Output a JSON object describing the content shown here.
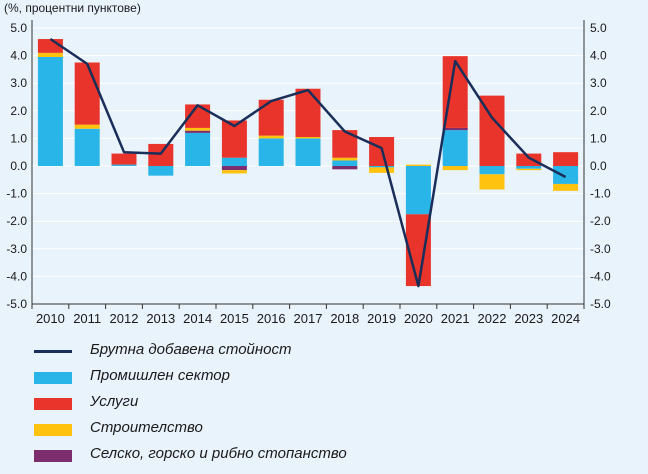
{
  "chart_data": {
    "type": "bar",
    "stacked": true,
    "unit_label": "(%, процентни пунктове)",
    "categories": [
      "2010",
      "2011",
      "2012",
      "2013",
      "2014",
      "2015",
      "2016",
      "2017",
      "2018",
      "2019",
      "2020",
      "2021",
      "2022",
      "2023",
      "2024"
    ],
    "ylim": [
      -5.0,
      5.0
    ],
    "yticks": [
      "5.0",
      "4.0",
      "3.0",
      "2.0",
      "1.0",
      "0.0",
      "-1.0",
      "-2.0",
      "-3.0",
      "-4.0",
      "-5.0"
    ],
    "series": [
      {
        "name": "Промишлен сектор",
        "color": "#29b5e8",
        "values": [
          3.95,
          1.35,
          0.05,
          -0.35,
          1.2,
          0.3,
          1.0,
          1.0,
          0.2,
          -0.05,
          -1.75,
          1.3,
          -0.3,
          -0.1,
          -0.65
        ]
      },
      {
        "name": "Селско, горско и рибно стопанство",
        "color": "#7b2d6e",
        "values": [
          0.0,
          0.0,
          0.0,
          0.0,
          0.08,
          -0.15,
          0.0,
          0.0,
          -0.12,
          0.0,
          0.0,
          0.08,
          0.0,
          0.0,
          0.0
        ]
      },
      {
        "name": "Строителство",
        "color": "#ffc20e",
        "values": [
          0.15,
          0.15,
          0.0,
          0.0,
          0.1,
          -0.12,
          0.1,
          0.05,
          0.1,
          -0.2,
          0.05,
          -0.15,
          -0.55,
          -0.05,
          -0.25
        ]
      },
      {
        "name": "Услуги",
        "color": "#e8342a",
        "values": [
          0.5,
          2.25,
          0.4,
          0.8,
          0.85,
          1.35,
          1.3,
          1.75,
          1.0,
          1.05,
          -2.6,
          2.6,
          2.55,
          0.45,
          0.5
        ]
      }
    ],
    "line": {
      "name": "Брутна добавена стойност",
      "color": "#1a2e5a",
      "values": [
        4.6,
        3.7,
        0.5,
        0.45,
        2.2,
        1.45,
        2.35,
        2.75,
        1.25,
        0.65,
        -4.35,
        3.8,
        1.75,
        0.3,
        -0.4
      ]
    },
    "legend": [
      {
        "label": "Брутна добавена стойност",
        "type": "line",
        "color": "#1a2e5a"
      },
      {
        "label": "Промишлен сектор",
        "type": "bar",
        "color": "#29b5e8"
      },
      {
        "label": "Услуги",
        "type": "bar",
        "color": "#e8342a"
      },
      {
        "label": "Строителство",
        "type": "bar",
        "color": "#ffc20e"
      },
      {
        "label": "Селско, горско и рибно стопанство",
        "type": "bar",
        "color": "#7b2d6e"
      }
    ]
  }
}
